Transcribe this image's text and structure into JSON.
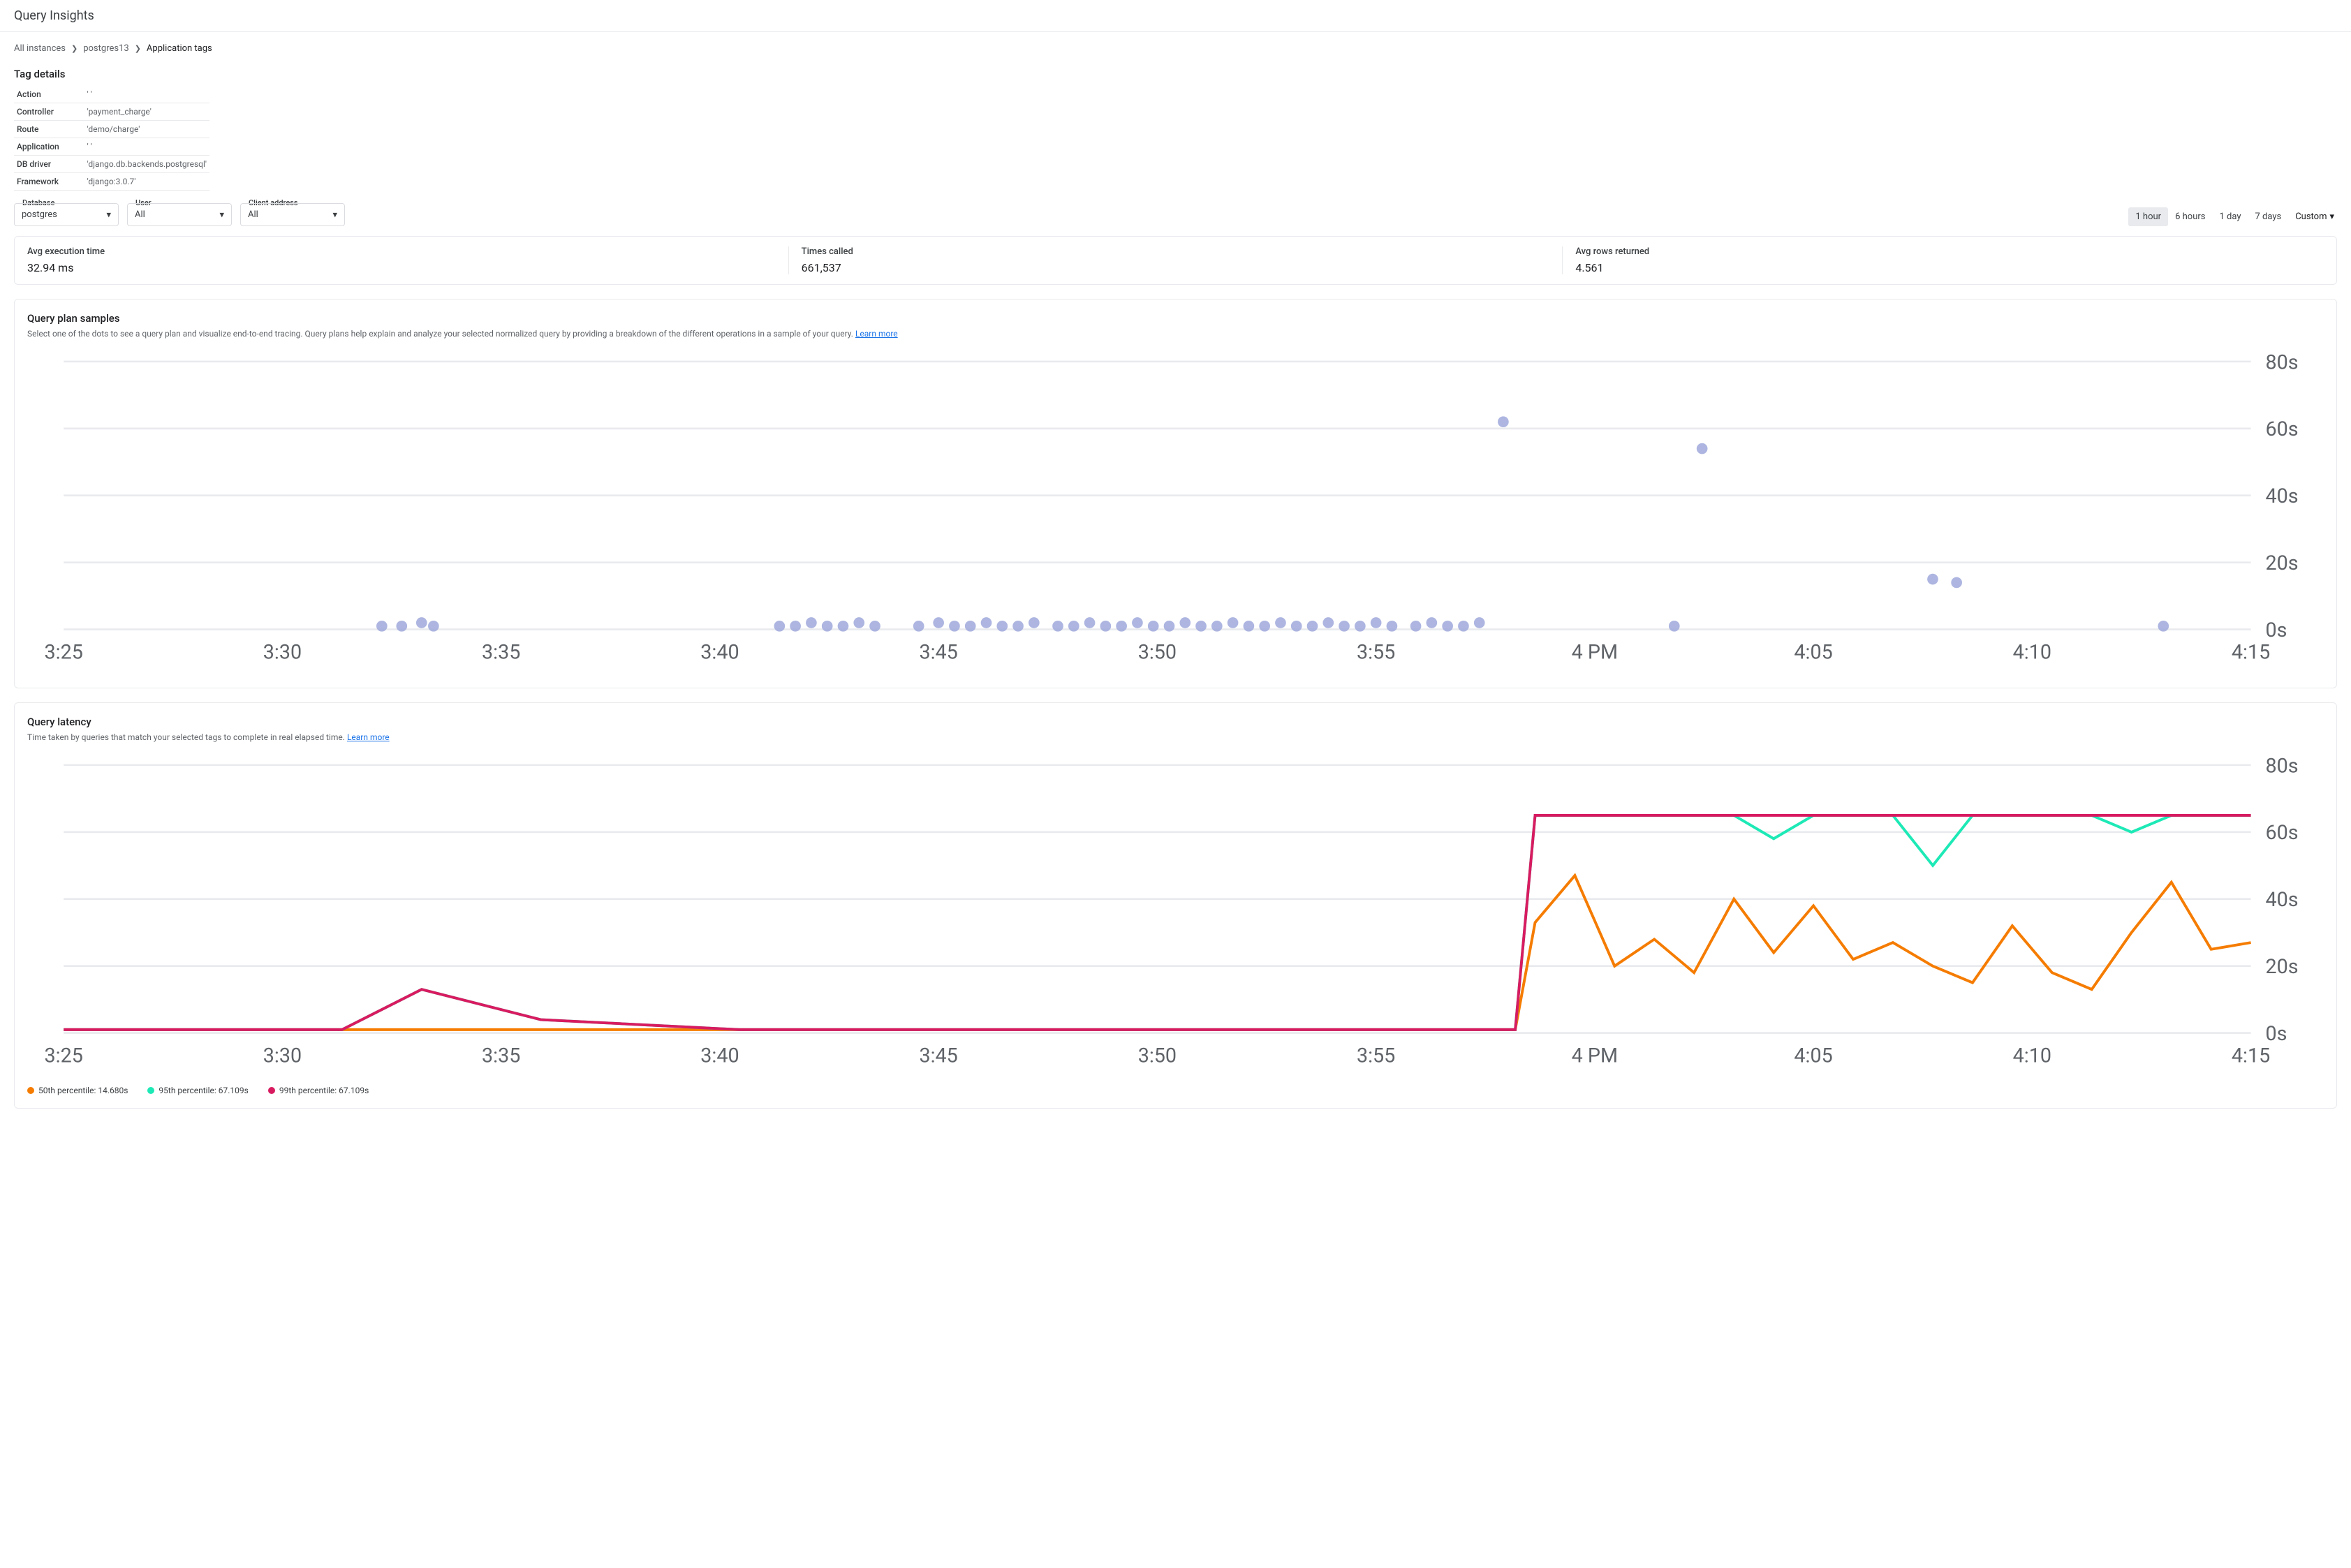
{
  "header": {
    "title": "Query Insights"
  },
  "breadcrumbs": {
    "items": [
      "All instances",
      "postgres13",
      "Application tags"
    ]
  },
  "tag_details": {
    "title": "Tag details",
    "rows": [
      {
        "k": "Action",
        "v": "' '"
      },
      {
        "k": "Controller",
        "v": "'payment_charge'"
      },
      {
        "k": "Route",
        "v": "'demo/charge'"
      },
      {
        "k": "Application",
        "v": "' '"
      },
      {
        "k": "DB driver",
        "v": "'django.db.backends.postgresql'"
      },
      {
        "k": "Framework",
        "v": "'django:3.0.7'"
      }
    ]
  },
  "filters": {
    "database": {
      "label": "Database",
      "value": "postgres"
    },
    "user": {
      "label": "User",
      "value": "All"
    },
    "client": {
      "label": "Client address",
      "value": "All"
    }
  },
  "time_range": {
    "items": [
      "1 hour",
      "6 hours",
      "1 day",
      "7 days"
    ],
    "active": "1 hour",
    "custom_label": "Custom"
  },
  "stats": {
    "exec": {
      "label": "Avg execution time",
      "value": "32.94 ms"
    },
    "calls": {
      "label": "Times called",
      "value": "661,537"
    },
    "rows": {
      "label": "Avg rows returned",
      "value": "4.561"
    }
  },
  "scatter_chart": {
    "title": "Query plan samples",
    "desc": "Select one of the dots to see a query plan and visualize end-to-end tracing. Query plans help explain and analyze your selected normalized query by providing a breakdown of the different operations in a sample of your query. ",
    "learn_more": "Learn more",
    "type": "scatter",
    "point_color": "#9fa8da",
    "grid_color": "#e8eaed",
    "background": "#ffffff",
    "marker_radius": 3,
    "ylim": [
      0,
      80
    ],
    "ytick_step": 20,
    "y_unit": "s",
    "x_labels": [
      "3:25",
      "3:30",
      "3:35",
      "3:40",
      "3:45",
      "3:50",
      "3:55",
      "4 PM",
      "4:05",
      "4:10",
      "4:15"
    ],
    "x_range": [
      0,
      55
    ],
    "points": [
      {
        "x": 8,
        "y": 1
      },
      {
        "x": 8.5,
        "y": 1
      },
      {
        "x": 9,
        "y": 2
      },
      {
        "x": 9.3,
        "y": 1
      },
      {
        "x": 18,
        "y": 1
      },
      {
        "x": 18.4,
        "y": 1
      },
      {
        "x": 18.8,
        "y": 2
      },
      {
        "x": 19.2,
        "y": 1
      },
      {
        "x": 19.6,
        "y": 1
      },
      {
        "x": 20,
        "y": 2
      },
      {
        "x": 20.4,
        "y": 1
      },
      {
        "x": 21.5,
        "y": 1
      },
      {
        "x": 22,
        "y": 2
      },
      {
        "x": 22.4,
        "y": 1
      },
      {
        "x": 22.8,
        "y": 1
      },
      {
        "x": 23.2,
        "y": 2
      },
      {
        "x": 23.6,
        "y": 1
      },
      {
        "x": 24,
        "y": 1
      },
      {
        "x": 24.4,
        "y": 2
      },
      {
        "x": 25,
        "y": 1
      },
      {
        "x": 25.4,
        "y": 1
      },
      {
        "x": 25.8,
        "y": 2
      },
      {
        "x": 26.2,
        "y": 1
      },
      {
        "x": 26.6,
        "y": 1
      },
      {
        "x": 27,
        "y": 2
      },
      {
        "x": 27.4,
        "y": 1
      },
      {
        "x": 27.8,
        "y": 1
      },
      {
        "x": 28.2,
        "y": 2
      },
      {
        "x": 28.6,
        "y": 1
      },
      {
        "x": 29,
        "y": 1
      },
      {
        "x": 29.4,
        "y": 2
      },
      {
        "x": 29.8,
        "y": 1
      },
      {
        "x": 30.2,
        "y": 1
      },
      {
        "x": 30.6,
        "y": 2
      },
      {
        "x": 31,
        "y": 1
      },
      {
        "x": 31.4,
        "y": 1
      },
      {
        "x": 31.8,
        "y": 2
      },
      {
        "x": 32.2,
        "y": 1
      },
      {
        "x": 32.6,
        "y": 1
      },
      {
        "x": 33,
        "y": 2
      },
      {
        "x": 33.4,
        "y": 1
      },
      {
        "x": 34,
        "y": 1
      },
      {
        "x": 34.4,
        "y": 2
      },
      {
        "x": 34.8,
        "y": 1
      },
      {
        "x": 35.2,
        "y": 1
      },
      {
        "x": 35.6,
        "y": 2
      },
      {
        "x": 36.2,
        "y": 62
      },
      {
        "x": 40.5,
        "y": 1
      },
      {
        "x": 41.2,
        "y": 54
      },
      {
        "x": 47,
        "y": 15
      },
      {
        "x": 47.6,
        "y": 14
      },
      {
        "x": 52.8,
        "y": 1
      }
    ]
  },
  "latency_chart": {
    "title": "Query latency",
    "desc": "Time taken by queries that match your selected tags to complete in real elapsed time. ",
    "learn_more": "Learn more",
    "type": "line",
    "grid_color": "#e8eaed",
    "background": "#ffffff",
    "line_width": 1.5,
    "ylim": [
      0,
      80
    ],
    "ytick_step": 20,
    "y_unit": "s",
    "x_labels": [
      "3:25",
      "3:30",
      "3:35",
      "3:40",
      "3:45",
      "3:50",
      "3:55",
      "4 PM",
      "4:05",
      "4:10",
      "4:15"
    ],
    "x_range": [
      0,
      55
    ],
    "series": [
      {
        "name": "50th percentile",
        "value_label": "14.680s",
        "color": "#f57c00",
        "data": [
          {
            "x": 0,
            "y": 1
          },
          {
            "x": 36,
            "y": 1
          },
          {
            "x": 36.5,
            "y": 1
          },
          {
            "x": 37,
            "y": 33
          },
          {
            "x": 38,
            "y": 47
          },
          {
            "x": 39,
            "y": 20
          },
          {
            "x": 40,
            "y": 28
          },
          {
            "x": 41,
            "y": 18
          },
          {
            "x": 42,
            "y": 40
          },
          {
            "x": 43,
            "y": 24
          },
          {
            "x": 44,
            "y": 38
          },
          {
            "x": 45,
            "y": 22
          },
          {
            "x": 46,
            "y": 27
          },
          {
            "x": 47,
            "y": 20
          },
          {
            "x": 48,
            "y": 15
          },
          {
            "x": 49,
            "y": 32
          },
          {
            "x": 50,
            "y": 18
          },
          {
            "x": 51,
            "y": 13
          },
          {
            "x": 52,
            "y": 30
          },
          {
            "x": 53,
            "y": 45
          },
          {
            "x": 54,
            "y": 25
          },
          {
            "x": 55,
            "y": 27
          }
        ]
      },
      {
        "name": "95th percentile",
        "value_label": "67.109s",
        "color": "#1de9b6",
        "data": [
          {
            "x": 0,
            "y": 1
          },
          {
            "x": 7,
            "y": 1
          },
          {
            "x": 9,
            "y": 13
          },
          {
            "x": 12,
            "y": 4
          },
          {
            "x": 17,
            "y": 1
          },
          {
            "x": 36,
            "y": 1
          },
          {
            "x": 36.5,
            "y": 1
          },
          {
            "x": 37,
            "y": 65
          },
          {
            "x": 42,
            "y": 65
          },
          {
            "x": 43,
            "y": 58
          },
          {
            "x": 44,
            "y": 65
          },
          {
            "x": 46,
            "y": 65
          },
          {
            "x": 47,
            "y": 50
          },
          {
            "x": 48,
            "y": 65
          },
          {
            "x": 51,
            "y": 65
          },
          {
            "x": 52,
            "y": 60
          },
          {
            "x": 53,
            "y": 65
          },
          {
            "x": 55,
            "y": 65
          }
        ]
      },
      {
        "name": "99th percentile",
        "value_label": "67.109s",
        "color": "#d81b60",
        "data": [
          {
            "x": 0,
            "y": 1
          },
          {
            "x": 7,
            "y": 1
          },
          {
            "x": 9,
            "y": 13
          },
          {
            "x": 12,
            "y": 4
          },
          {
            "x": 17,
            "y": 1
          },
          {
            "x": 36,
            "y": 1
          },
          {
            "x": 36.5,
            "y": 1
          },
          {
            "x": 37,
            "y": 65
          },
          {
            "x": 55,
            "y": 65
          }
        ]
      }
    ]
  }
}
